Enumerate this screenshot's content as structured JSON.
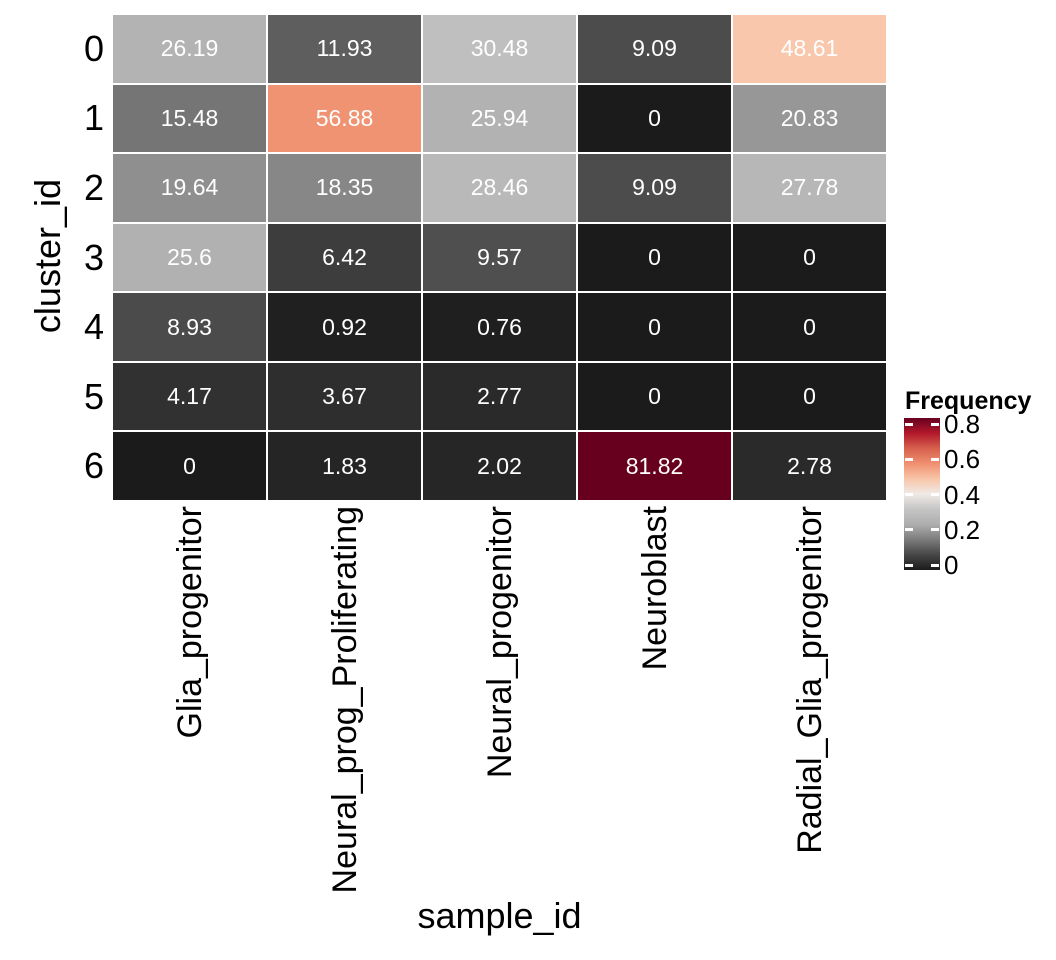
{
  "figure": {
    "x_axis_title": "sample_id",
    "y_axis_title": "cluster_id",
    "background": "#FFFFFF"
  },
  "chart_data": {
    "type": "heatmap",
    "x_categories": [
      "Glia_progenitor",
      "Neural_prog_Proliferating",
      "Neural_progenitor",
      "Neuroblast",
      "Radial_Glia_progenitor"
    ],
    "y_categories": [
      "0",
      "1",
      "2",
      "3",
      "4",
      "5",
      "6"
    ],
    "cell_labels": [
      [
        "26.19",
        "11.93",
        "30.48",
        "9.09",
        "48.61"
      ],
      [
        "15.48",
        "56.88",
        "25.94",
        "0",
        "20.83"
      ],
      [
        "19.64",
        "18.35",
        "28.46",
        "9.09",
        "27.78"
      ],
      [
        "25.6",
        "6.42",
        "9.57",
        "0",
        "0"
      ],
      [
        "8.93",
        "0.92",
        "0.76",
        "0",
        "0"
      ],
      [
        "4.17",
        "3.67",
        "2.77",
        "0",
        "0"
      ],
      [
        "0",
        "1.83",
        "2.02",
        "81.82",
        "2.78"
      ]
    ],
    "values_percent": [
      [
        26.19,
        11.93,
        30.48,
        9.09,
        48.61
      ],
      [
        15.48,
        56.88,
        25.94,
        0,
        20.83
      ],
      [
        19.64,
        18.35,
        28.46,
        9.09,
        27.78
      ],
      [
        25.6,
        6.42,
        9.57,
        0,
        0
      ],
      [
        8.93,
        0.92,
        0.76,
        0,
        0
      ],
      [
        4.17,
        3.67,
        2.77,
        0,
        0
      ],
      [
        0,
        1.83,
        2.02,
        81.82,
        2.78
      ]
    ],
    "frequency_domain": [
      0,
      0.8182
    ],
    "palette_stops": [
      "#1B1B1B",
      "#464646",
      "#7B7B7B",
      "#AEAEAE",
      "#C5C5C5",
      "#F0EAE6",
      "#F8C5A8",
      "#EF9070",
      "#D6604D",
      "#B2182B",
      "#67001F"
    ],
    "grid_line_color": "#FFFFFF",
    "cell_text_color": "#FFFFFF",
    "legend": {
      "title": "Frequency",
      "tick_labels": [
        "0.8",
        "0.6",
        "0.4",
        "0.2",
        "0"
      ],
      "tick_values": [
        0.8,
        0.6,
        0.4,
        0.2,
        0
      ],
      "tick_mark_color": "#FFFFFF",
      "position": "right"
    }
  }
}
